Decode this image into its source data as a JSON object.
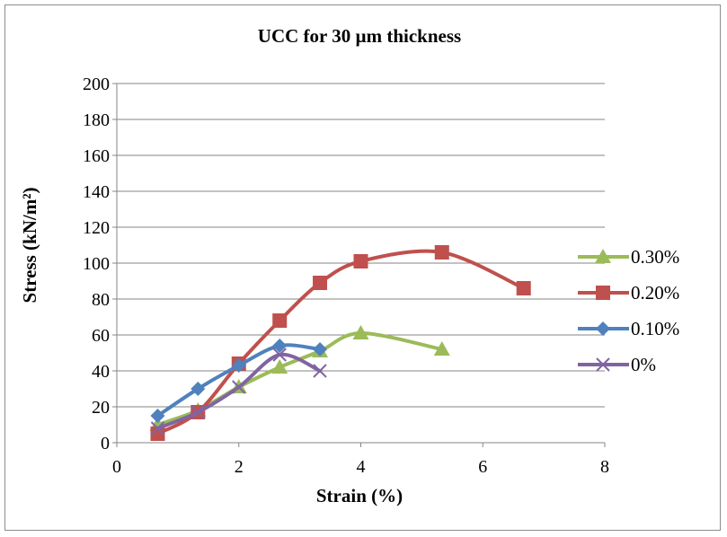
{
  "chart_data": {
    "type": "line",
    "title": "UCC for 30 µm thickness",
    "xlabel": "Strain (%)",
    "ylabel": "Stress (kN/m²)",
    "xlim": [
      0,
      8
    ],
    "ylim": [
      0,
      200
    ],
    "xticks": [
      0,
      2,
      4,
      6,
      8
    ],
    "yticks": [
      0,
      20,
      40,
      60,
      80,
      100,
      120,
      140,
      160,
      180,
      200
    ],
    "grid": true,
    "legend_position": "right",
    "series": [
      {
        "name": "0.30%",
        "color": "#9bbb59",
        "marker": "triangle",
        "x": [
          0.67,
          1.33,
          2.0,
          2.67,
          3.33,
          4.0,
          5.33
        ],
        "y": [
          10,
          18,
          31,
          42,
          51,
          61,
          52
        ]
      },
      {
        "name": "0.20%",
        "color": "#c0504d",
        "marker": "square",
        "x": [
          0.67,
          1.33,
          2.0,
          2.67,
          3.33,
          4.0,
          5.33,
          6.67
        ],
        "y": [
          5,
          17,
          44,
          68,
          89,
          101,
          106,
          86
        ]
      },
      {
        "name": "0.10%",
        "color": "#4f81bd",
        "marker": "diamond",
        "x": [
          0.67,
          1.33,
          2.0,
          2.67,
          3.33
        ],
        "y": [
          15,
          30,
          43,
          54,
          52
        ]
      },
      {
        "name": "0%",
        "color": "#8064a2",
        "marker": "x",
        "x": [
          0.67,
          1.33,
          2.0,
          2.67,
          3.33
        ],
        "y": [
          8,
          17,
          31,
          49,
          40
        ]
      }
    ]
  }
}
